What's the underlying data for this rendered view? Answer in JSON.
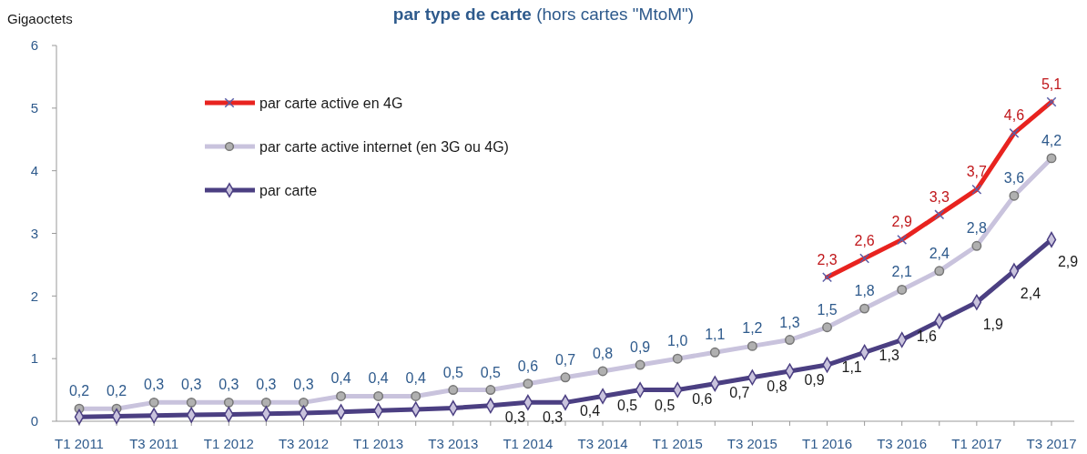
{
  "chart_data": {
    "type": "line",
    "title": "par type de carte",
    "subtitle": "(hors cartes \"MtoM\")",
    "ylabel": "Gigaoctets",
    "categories": [
      "T1 2011",
      null,
      "T3 2011",
      null,
      "T1 2012",
      null,
      "T3 2012",
      null,
      "T1 2013",
      null,
      "T3 2013",
      null,
      "T1 2014",
      null,
      "T3 2014",
      null,
      "T1 2015",
      null,
      "T3 2015",
      null,
      "T1 2016",
      null,
      "T3 2016",
      null,
      "T1 2017",
      null,
      "T3 2017"
    ],
    "ylim": [
      0,
      6
    ],
    "yticks": [
      0,
      1,
      2,
      3,
      4,
      5,
      6
    ],
    "grid": false,
    "legend": "top left",
    "series": [
      {
        "name": "par carte active en 4G",
        "color": "#e8231f",
        "marker": "cross",
        "values": [
          null,
          null,
          null,
          null,
          null,
          null,
          null,
          null,
          null,
          null,
          null,
          null,
          null,
          null,
          null,
          null,
          null,
          null,
          null,
          null,
          2.3,
          2.6,
          2.9,
          3.3,
          3.7,
          4.6,
          5.1
        ],
        "value_labels": [
          null,
          null,
          null,
          null,
          null,
          null,
          null,
          null,
          null,
          null,
          null,
          null,
          null,
          null,
          null,
          null,
          null,
          null,
          null,
          null,
          "2,3",
          "2,6",
          "2,9",
          "3,3",
          "3,7",
          "4,6",
          "5,1"
        ]
      },
      {
        "name": "par carte active internet (en 3G ou 4G)",
        "color": "#c9c3dd",
        "marker": "circle",
        "values": [
          0.2,
          0.2,
          0.3,
          0.3,
          0.3,
          0.3,
          0.3,
          0.4,
          0.4,
          0.4,
          0.5,
          0.5,
          0.6,
          0.7,
          0.8,
          0.9,
          1.0,
          1.1,
          1.2,
          1.3,
          1.5,
          1.8,
          2.1,
          2.4,
          2.8,
          3.6,
          4.2
        ],
        "value_labels": [
          "0,2",
          "0,2",
          "0,3",
          "0,3",
          "0,3",
          "0,3",
          "0,3",
          "0,4",
          "0,4",
          "0,4",
          "0,5",
          "0,5",
          "0,6",
          "0,7",
          "0,8",
          "0,9",
          "1,0",
          "1,1",
          "1,2",
          "1,3",
          "1,5",
          "1,8",
          "2,1",
          "2,4",
          "2,8",
          "3,6",
          "4,2"
        ]
      },
      {
        "name": "par carte",
        "color": "#4b3f82",
        "marker": "diamond",
        "values": [
          0.07,
          0.08,
          0.09,
          0.1,
          0.11,
          0.12,
          0.13,
          0.15,
          0.17,
          0.19,
          0.21,
          0.25,
          0.3,
          0.3,
          0.4,
          0.5,
          0.5,
          0.6,
          0.7,
          0.8,
          0.9,
          1.1,
          1.3,
          1.6,
          1.9,
          2.4,
          2.9
        ],
        "value_labels": [
          null,
          null,
          null,
          null,
          null,
          null,
          null,
          null,
          null,
          null,
          null,
          null,
          "0,3",
          "0,3",
          "0,4",
          "0,5",
          "0,5",
          "0,6",
          "0,7",
          "0,8",
          "0,9",
          "1,1",
          "1,3",
          "1,6",
          "1,9",
          "2,4",
          "2,9"
        ]
      }
    ]
  }
}
